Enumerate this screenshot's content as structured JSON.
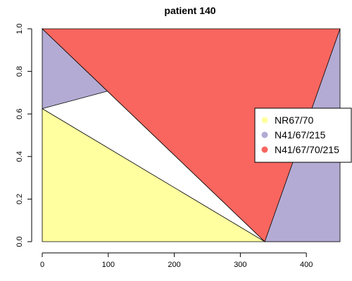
{
  "chart_data": {
    "type": "area",
    "title": "patient 140",
    "xlabel": "",
    "ylabel": "",
    "xlim": [
      0,
      451
    ],
    "ylim": [
      0,
      1
    ],
    "x_ticks": [
      0,
      100,
      200,
      300,
      400
    ],
    "y_ticks": [
      0.0,
      0.2,
      0.4,
      0.6,
      0.8,
      1.0
    ],
    "x_tick_labels": [
      "0",
      "100",
      "200",
      "300",
      "400"
    ],
    "y_tick_labels": [
      "0.0",
      "0.2",
      "0.4",
      "0.6",
      "0.8",
      "1.0"
    ],
    "grid": false,
    "legend_position": "right",
    "series": [
      {
        "name": "NR67/70",
        "color": "#FFFFA0",
        "polygon": [
          [
            0,
            0
          ],
          [
            0,
            0.625
          ],
          [
            337,
            0
          ],
          [
            451,
            0
          ]
        ]
      },
      {
        "name": "N41/67/215",
        "color": "#B3ABD3",
        "polygon": [
          [
            0,
            0.625
          ],
          [
            0,
            1
          ],
          [
            337,
            0
          ],
          [
            451,
            0
          ],
          [
            451,
            1
          ]
        ]
      },
      {
        "name": "N41/67/70/215",
        "color": "#F8665F",
        "polygon": [
          [
            0,
            1
          ],
          [
            451,
            1
          ],
          [
            337,
            0
          ]
        ]
      }
    ]
  }
}
